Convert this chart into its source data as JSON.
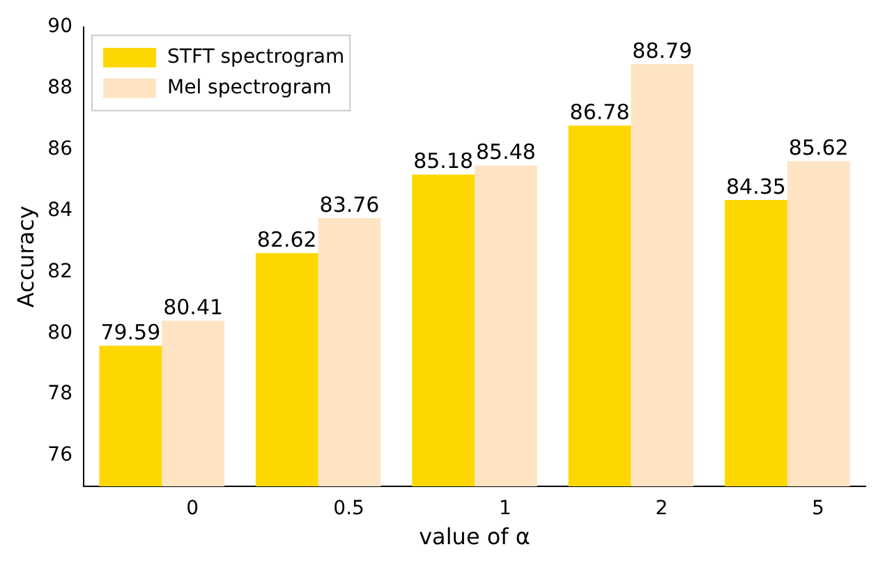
{
  "chart_data": {
    "type": "bar",
    "xlabel": "value of α",
    "ylabel": "Accuracy",
    "categories": [
      "0",
      "0.5",
      "1",
      "2",
      "5"
    ],
    "series": [
      {
        "name": "STFT spectrogram",
        "color": "#ffd700",
        "values": [
          79.59,
          82.62,
          85.18,
          86.78,
          84.35
        ]
      },
      {
        "name": "Mel spectrogram",
        "color": "#ffe4c4",
        "values": [
          80.41,
          83.76,
          85.48,
          88.79,
          85.62
        ]
      }
    ],
    "ylim": [
      75,
      90
    ],
    "yticks": [
      76,
      78,
      80,
      82,
      84,
      86,
      88,
      90
    ],
    "grid": false,
    "legend": "top left",
    "data_labels": true
  }
}
